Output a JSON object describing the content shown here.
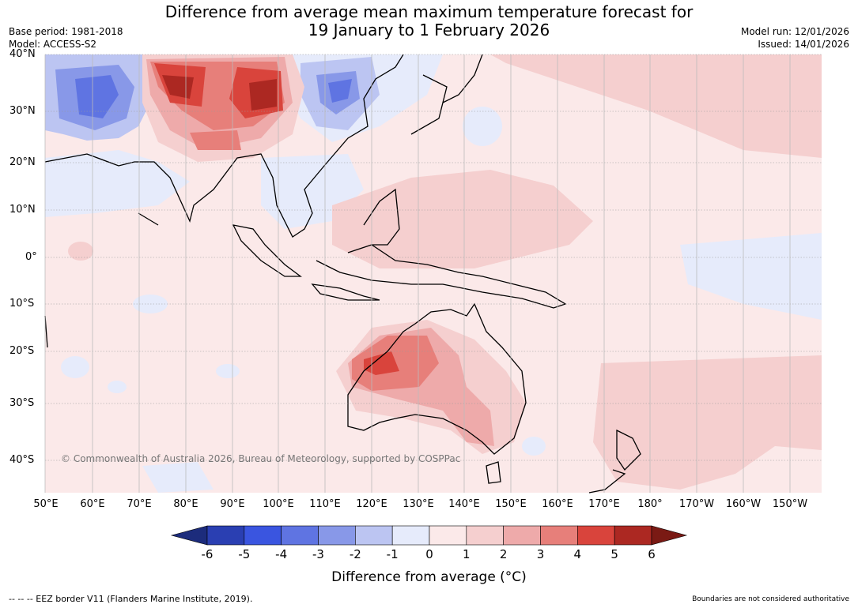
{
  "title_line1": "Difference from average mean maximum temperature forecast for",
  "title_line2": "19 January to 1 February 2026",
  "base_period": "Base period: 1981-2018",
  "model": "Model: ACCESS-S2",
  "model_run": "Model run: 12/01/2026",
  "issued": "Issued: 14/01/2026",
  "lat_labels": [
    "40°N",
    "30°N",
    "20°N",
    "10°N",
    "0°",
    "10°S",
    "20°S",
    "30°S",
    "40°S"
  ],
  "lon_labels": [
    "50°E",
    "60°E",
    "70°E",
    "80°E",
    "90°E",
    "100°E",
    "110°E",
    "120°E",
    "130°E",
    "140°E",
    "150°E",
    "160°E",
    "170°E",
    "180°",
    "170°W",
    "160°W",
    "150°W"
  ],
  "copyright": "© Commonwealth of Australia 2026, Bureau of Meteorology, supported by COSPPac",
  "colorbar": {
    "title": "Difference from average (°C)",
    "ticks": [
      "-6",
      "-5",
      "-4",
      "-3",
      "-2",
      "-1",
      "0",
      "1",
      "2",
      "3",
      "4",
      "5",
      "6"
    ],
    "under_color": "#1c2c7c",
    "colors": [
      "#2a3fb2",
      "#3a55e0",
      "#5f74e2",
      "#8898e8",
      "#bcc5f2",
      "#e6ebfb",
      "#fbe9e9",
      "#f5cfcf",
      "#eeaaaa",
      "#e77f7a",
      "#d9443c",
      "#ac2822"
    ],
    "over_color": "#7a1a14"
  },
  "footer_left": "--  --  -- EEZ border V11 (Flanders Marine Institute, 2019).",
  "footer_right": "Boundaries are not considered authoritative"
}
